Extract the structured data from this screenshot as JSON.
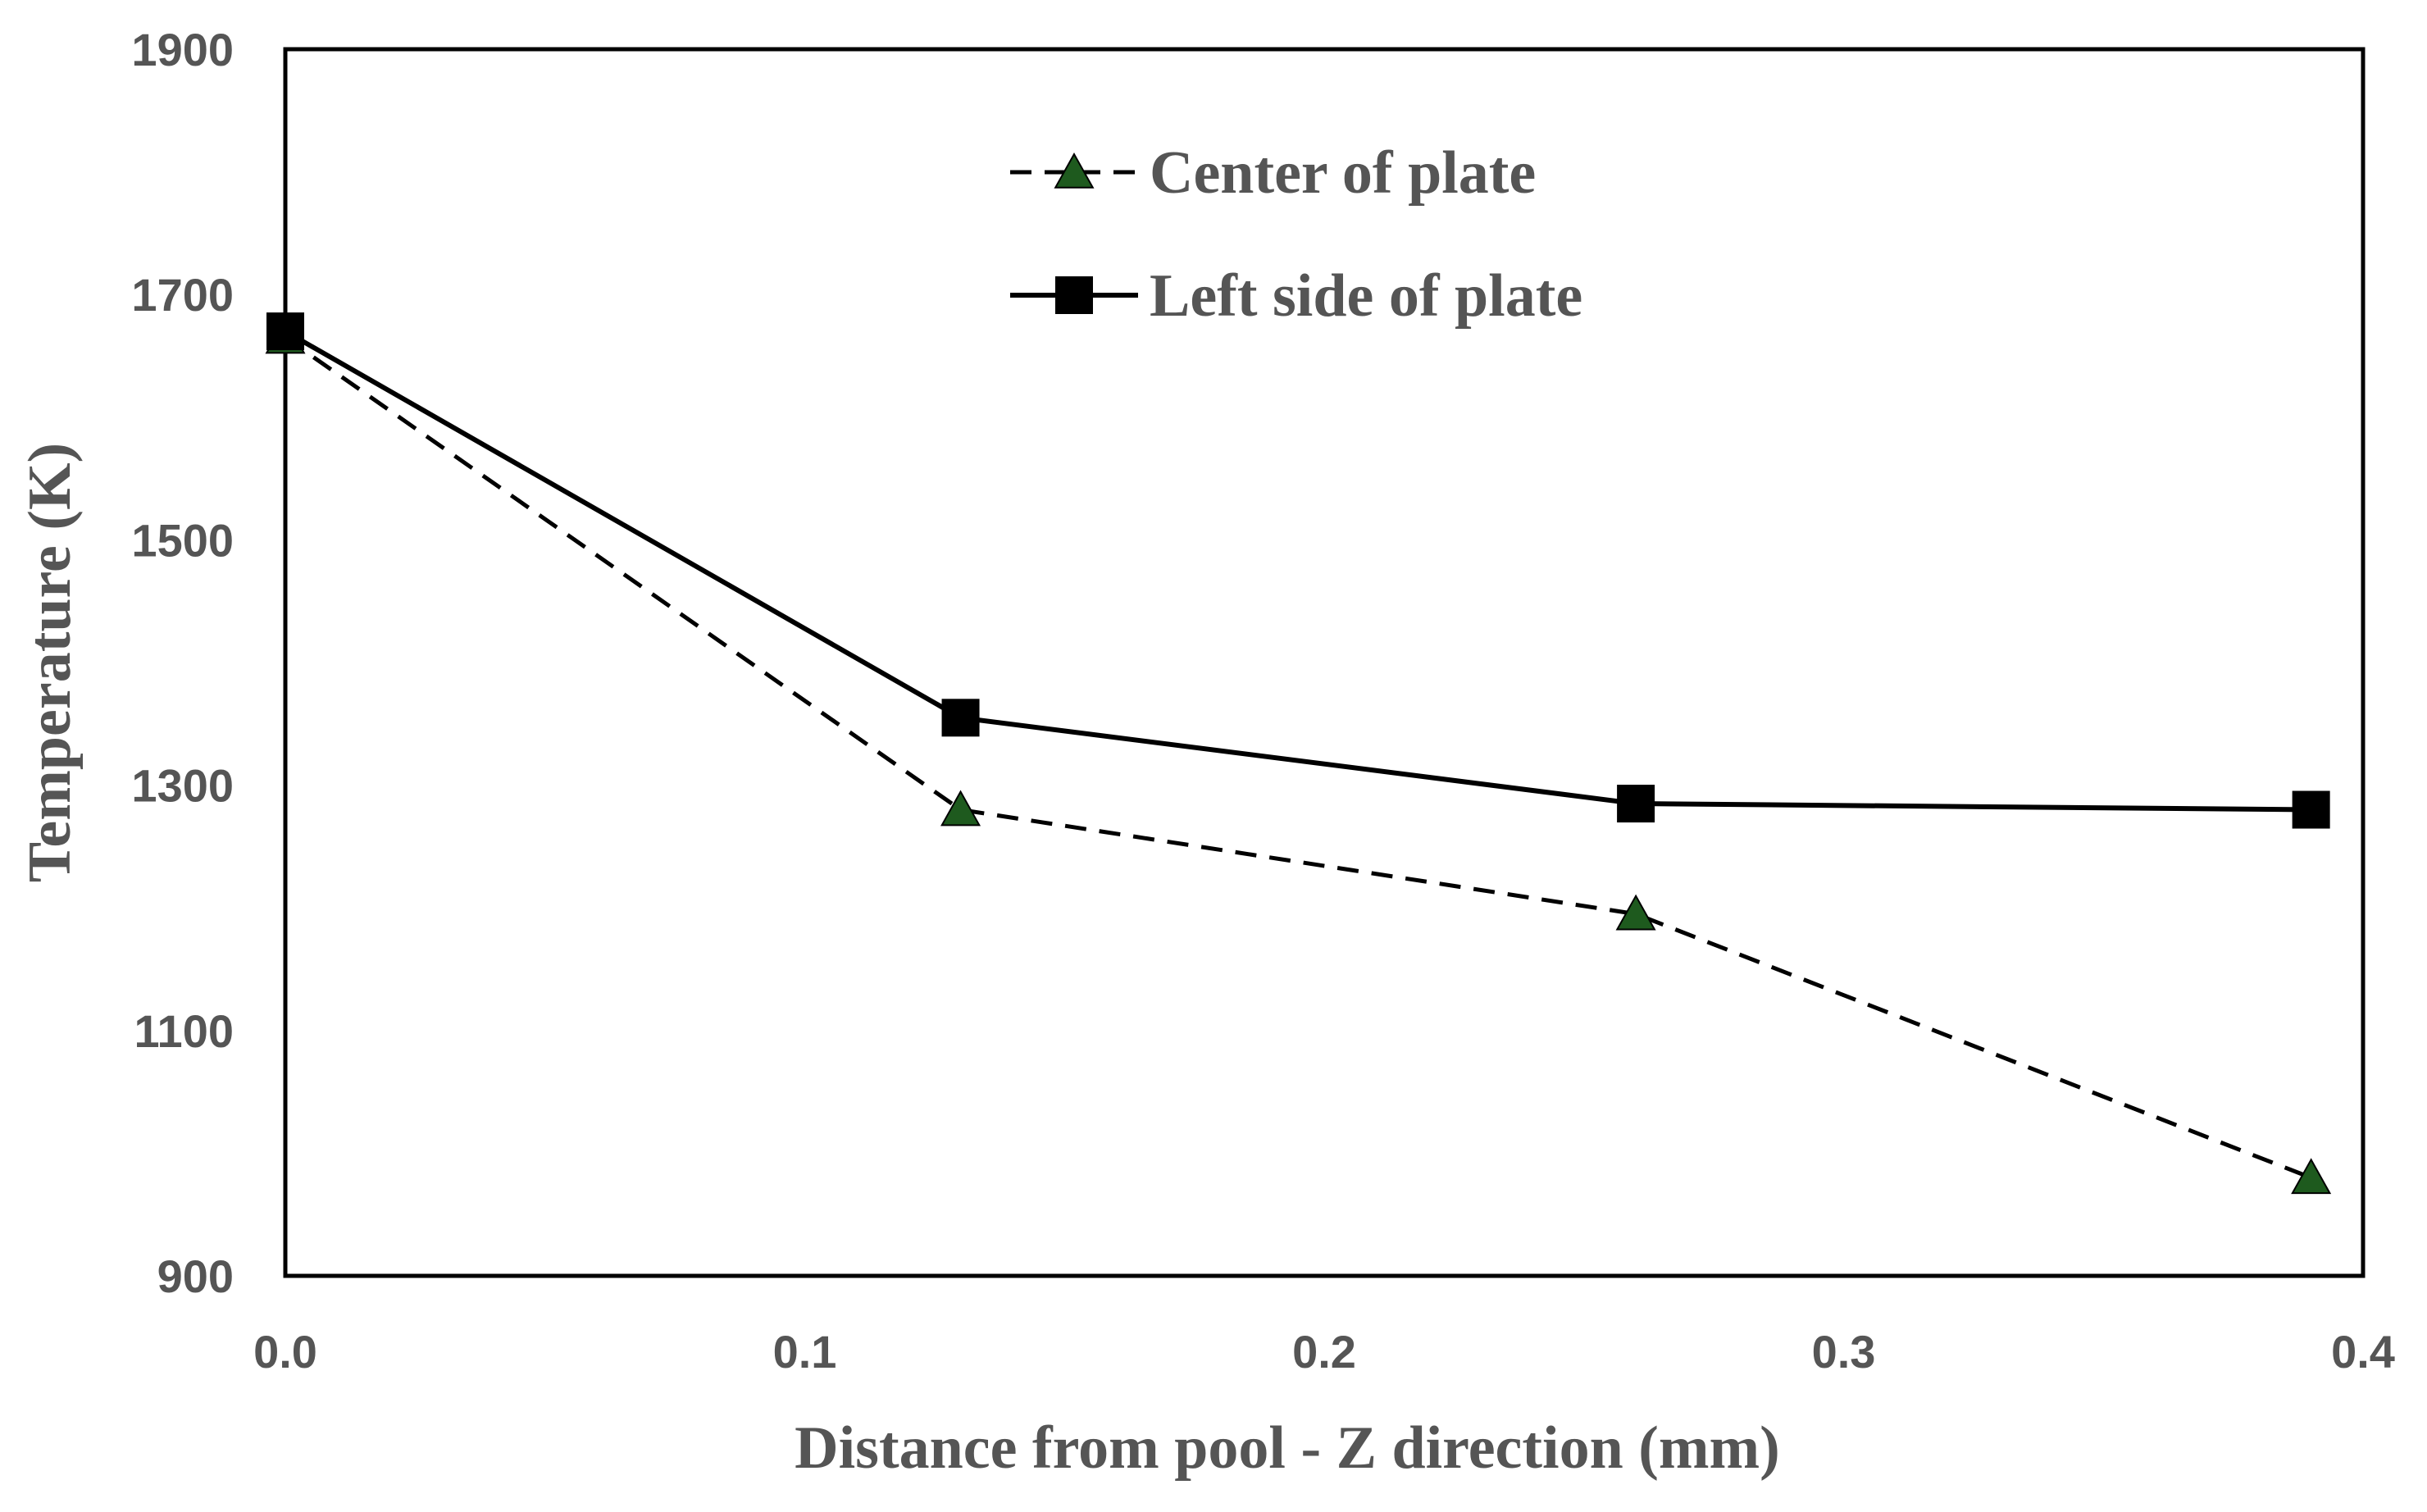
{
  "chart_data": {
    "type": "line",
    "title": "",
    "xlabel": "Distance from pool - Z direction (mm)",
    "ylabel": "Temperature (K)",
    "xlim": [
      0.0,
      0.4
    ],
    "ylim": [
      900,
      1900
    ],
    "xticks": [
      0.0,
      0.1,
      0.2,
      0.3,
      0.4
    ],
    "xtick_labels": [
      "0.0",
      "0.1",
      "0.2",
      "0.3",
      "0.4"
    ],
    "yticks": [
      900,
      1100,
      1300,
      1500,
      1700,
      1900
    ],
    "ytick_labels": [
      "900",
      "1100",
      "1300",
      "1500",
      "1700",
      "1900"
    ],
    "grid": false,
    "legend_position": "top-center",
    "series": [
      {
        "name": "Center of plate",
        "x": [
          0.0,
          0.13,
          0.26,
          0.39
        ],
        "y": [
          1665,
          1280,
          1195,
          980
        ],
        "line_style": "dashed",
        "line_color": "#000000",
        "marker": "triangle",
        "marker_color": "#1e5a1e"
      },
      {
        "name": "Left side of plate",
        "x": [
          0.0,
          0.13,
          0.26,
          0.39
        ],
        "y": [
          1670,
          1355,
          1285,
          1280
        ],
        "line_style": "solid",
        "line_color": "#000000",
        "marker": "square",
        "marker_color": "#000000"
      }
    ]
  }
}
